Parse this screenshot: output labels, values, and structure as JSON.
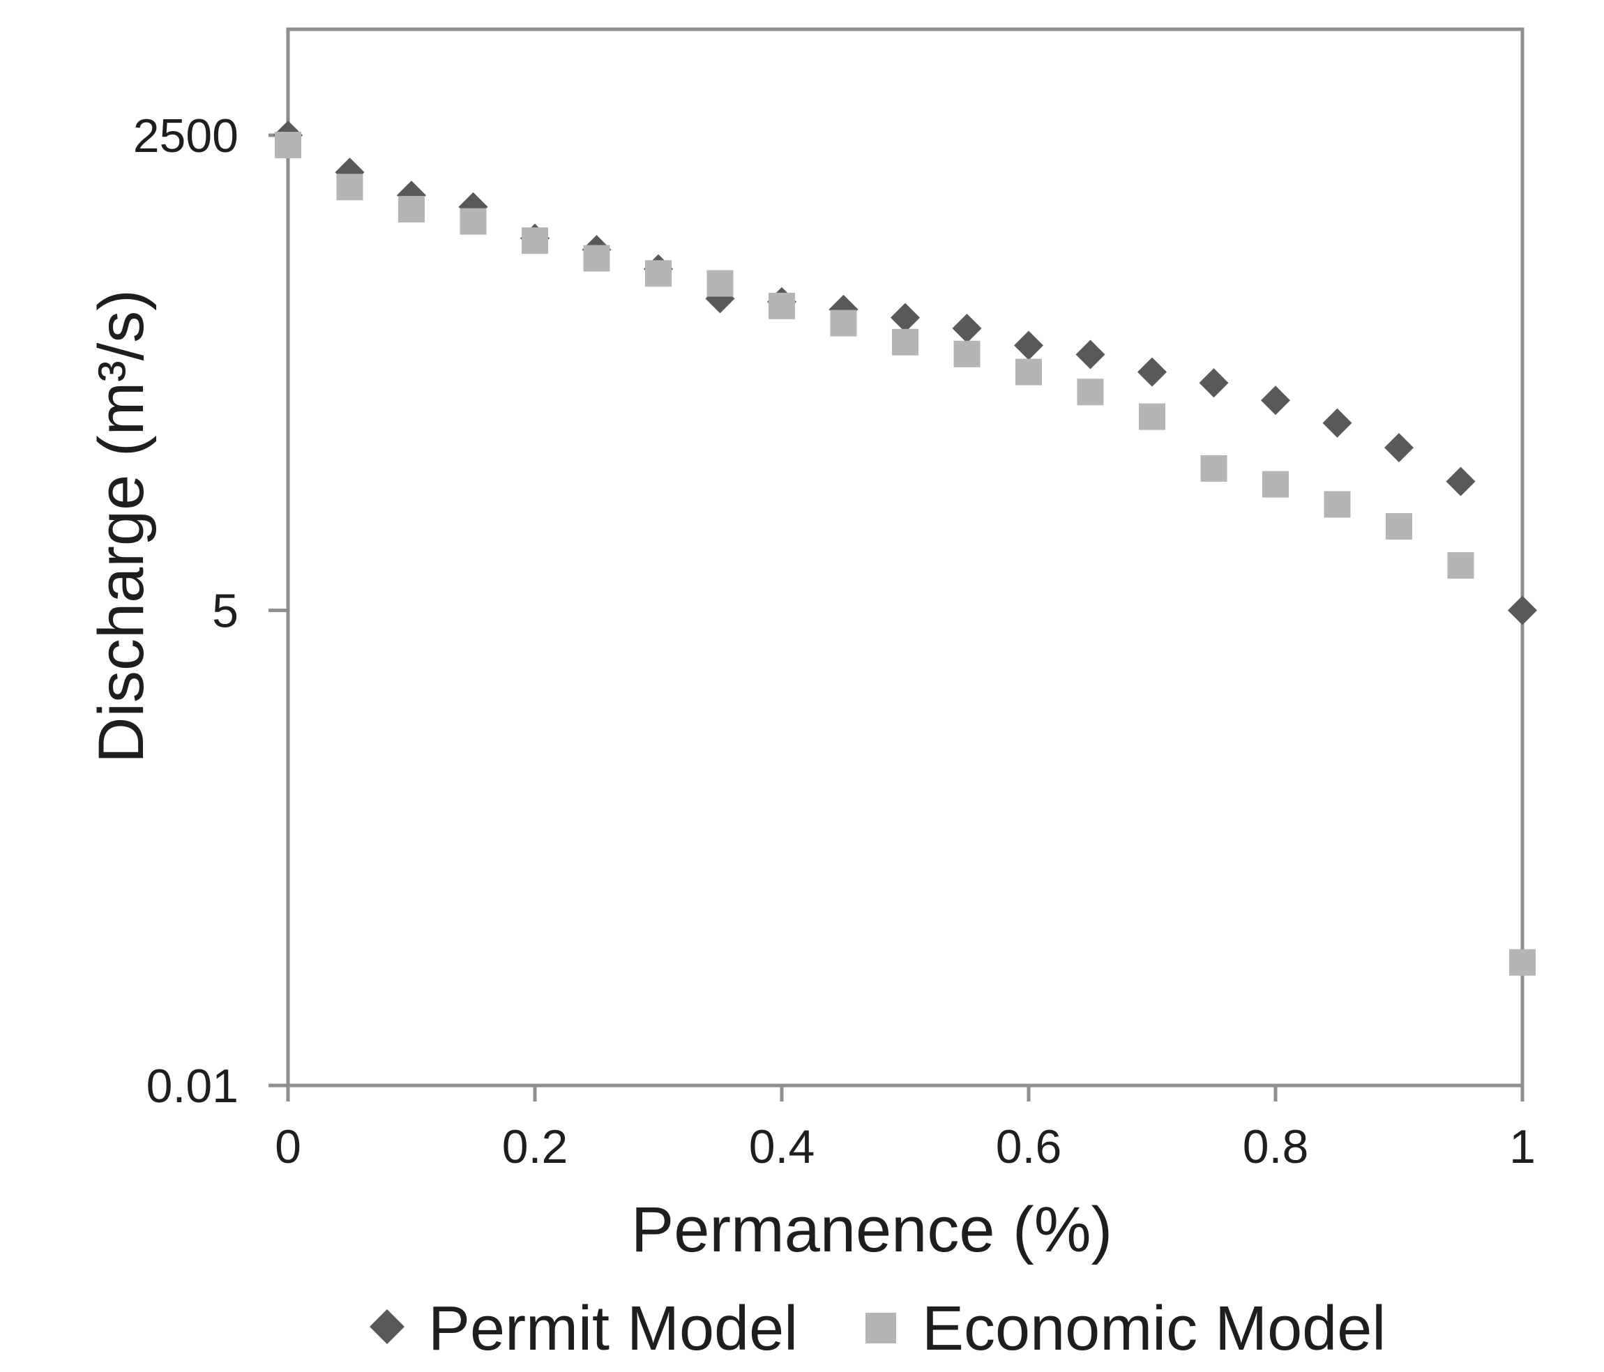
{
  "chart_data": {
    "type": "scatter",
    "title": "",
    "xlabel": "Permanence (%)",
    "ylabel": "Discharge (m³/s)",
    "x_scale": "linear",
    "y_scale": "log",
    "xlim": [
      0,
      1
    ],
    "ylim": [
      0.01,
      10000
    ],
    "grid": false,
    "legend_position": "bottom",
    "x_ticks": [
      0,
      0.2,
      0.4,
      0.6,
      0.8,
      1
    ],
    "x_tick_labels": [
      "0",
      "0.2",
      "0.4",
      "0.6",
      "0.8",
      "1"
    ],
    "y_ticks": [
      2500,
      5,
      0.01
    ],
    "y_tick_labels": [
      "2500",
      "5",
      "0.01"
    ],
    "x": [
      0,
      0.05,
      0.1,
      0.15,
      0.2,
      0.25,
      0.3,
      0.35,
      0.4,
      0.45,
      0.5,
      0.55,
      0.6,
      0.65,
      0.7,
      0.75,
      0.8,
      0.85,
      0.9,
      0.95,
      1
    ],
    "series": [
      {
        "name": "Permit Model",
        "marker": "diamond",
        "color": "#59595b",
        "values": [
          2500,
          1540,
          1140,
          980,
          650,
          560,
          435,
          295,
          283,
          256,
          230,
          200,
          160,
          142,
          113,
          98,
          78,
          58,
          42,
          27,
          5
        ]
      },
      {
        "name": "Economic Model",
        "marker": "square",
        "color": "#b5b5b7",
        "values": [
          2200,
          1270,
          950,
          810,
          630,
          500,
          410,
          360,
          268,
          214,
          167,
          143,
          113,
          87,
          63,
          32,
          26,
          20,
          15,
          9,
          0.05
        ]
      }
    ],
    "frame_color": "#8e8e90",
    "text_color": "#1e1e1e",
    "background": "#ffffff"
  }
}
